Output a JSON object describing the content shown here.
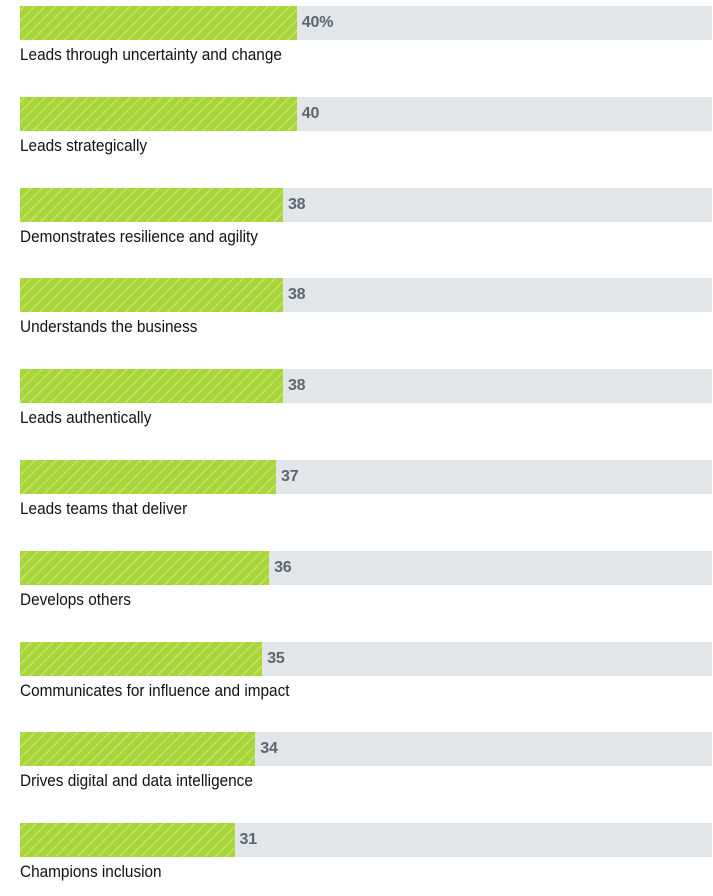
{
  "chart_data": {
    "type": "bar",
    "orientation": "horizontal",
    "categories": [
      "Leads through uncertainty and change",
      "Leads strategically",
      "Demonstrates resilience and agility",
      "Understands the business",
      "Leads authentically",
      "Leads teams that deliver",
      "Develops others",
      "Communicates for influence and impact",
      "Drives digital and data intelligence",
      "Champions inclusion"
    ],
    "values": [
      40,
      40,
      38,
      38,
      38,
      37,
      36,
      35,
      34,
      31
    ],
    "value_labels": [
      "40%",
      "40",
      "38",
      "38",
      "38",
      "37",
      "36",
      "35",
      "34",
      "31"
    ],
    "xlim": [
      0,
      100
    ],
    "title": "",
    "xlabel": "",
    "ylabel": "",
    "grid": false,
    "legend": "none",
    "colors": {
      "bar": "#a7d53a",
      "track": "#e3e6e8",
      "value_text": "#5b6670",
      "label_text": "#111111"
    }
  }
}
